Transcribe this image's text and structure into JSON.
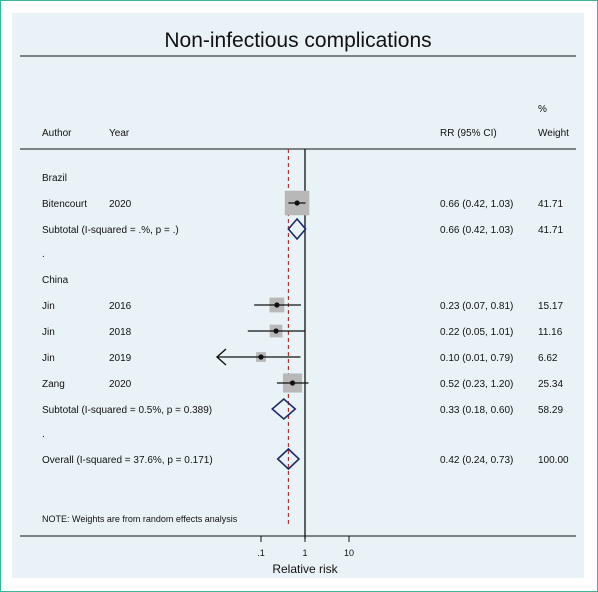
{
  "title": "Non-infectious complications",
  "header": {
    "author": "Author",
    "year": "Year",
    "rr": "RR (95% CI)",
    "pct": "%",
    "weight": "Weight"
  },
  "note": "NOTE: Weights are from random effects analysis",
  "xlabel": "Relative risk",
  "colors": {
    "border": "#3fb39a",
    "panel": "#e9f3f7",
    "diamond": "#1f2a6b",
    "refline": "#b03a3a",
    "box": "#b8b8b8"
  },
  "chart_data": {
    "type": "forest",
    "title": "Non-infectious complications",
    "xlabel": "Relative risk",
    "xscale": "log",
    "xticks": [
      0.1,
      1,
      10
    ],
    "xtick_labels": [
      ".1",
      "1",
      "10"
    ],
    "null_line": 1,
    "overall_line": 0.42,
    "rows": [
      {
        "kind": "group",
        "label": "Brazil"
      },
      {
        "kind": "study",
        "author": "Bitencourt",
        "year": "2020",
        "rr": 0.66,
        "lo": 0.42,
        "hi": 1.03,
        "ci_text": "0.66 (0.42, 1.03)",
        "weight": 41.71,
        "weight_text": "41.71"
      },
      {
        "kind": "subtotal",
        "label": "Subtotal  (I-squared = .%, p = .)",
        "rr": 0.66,
        "lo": 0.42,
        "hi": 1.03,
        "ci_text": "0.66 (0.42, 1.03)",
        "weight_text": "41.71"
      },
      {
        "kind": "dot",
        "label": "."
      },
      {
        "kind": "group",
        "label": "China"
      },
      {
        "kind": "study",
        "author": "Jin",
        "year": "2016",
        "rr": 0.23,
        "lo": 0.07,
        "hi": 0.81,
        "ci_text": "0.23 (0.07, 0.81)",
        "weight": 15.17,
        "weight_text": "15.17"
      },
      {
        "kind": "study",
        "author": "Jin",
        "year": "2018",
        "rr": 0.22,
        "lo": 0.05,
        "hi": 1.01,
        "ci_text": "0.22 (0.05, 1.01)",
        "weight": 11.16,
        "weight_text": "11.16"
      },
      {
        "kind": "study",
        "author": "Jin",
        "year": "2019",
        "rr": 0.1,
        "lo": 0.01,
        "hi": 0.79,
        "ci_text": "0.10 (0.01, 0.79)",
        "weight": 6.62,
        "weight_text": "6.62",
        "arrow_left": true
      },
      {
        "kind": "study",
        "author": "Zang",
        "year": "2020",
        "rr": 0.52,
        "lo": 0.23,
        "hi": 1.2,
        "ci_text": "0.52 (0.23, 1.20)",
        "weight": 25.34,
        "weight_text": "25.34"
      },
      {
        "kind": "subtotal",
        "label": "Subtotal  (I-squared = 0.5%, p = 0.389)",
        "rr": 0.33,
        "lo": 0.18,
        "hi": 0.6,
        "ci_text": "0.33 (0.18, 0.60)",
        "weight_text": "58.29"
      },
      {
        "kind": "dot",
        "label": "."
      },
      {
        "kind": "overall",
        "label": "Overall  (I-squared = 37.6%, p = 0.171)",
        "rr": 0.42,
        "lo": 0.24,
        "hi": 0.73,
        "ci_text": "0.42 (0.24, 0.73)",
        "weight_text": "100.00"
      }
    ]
  }
}
